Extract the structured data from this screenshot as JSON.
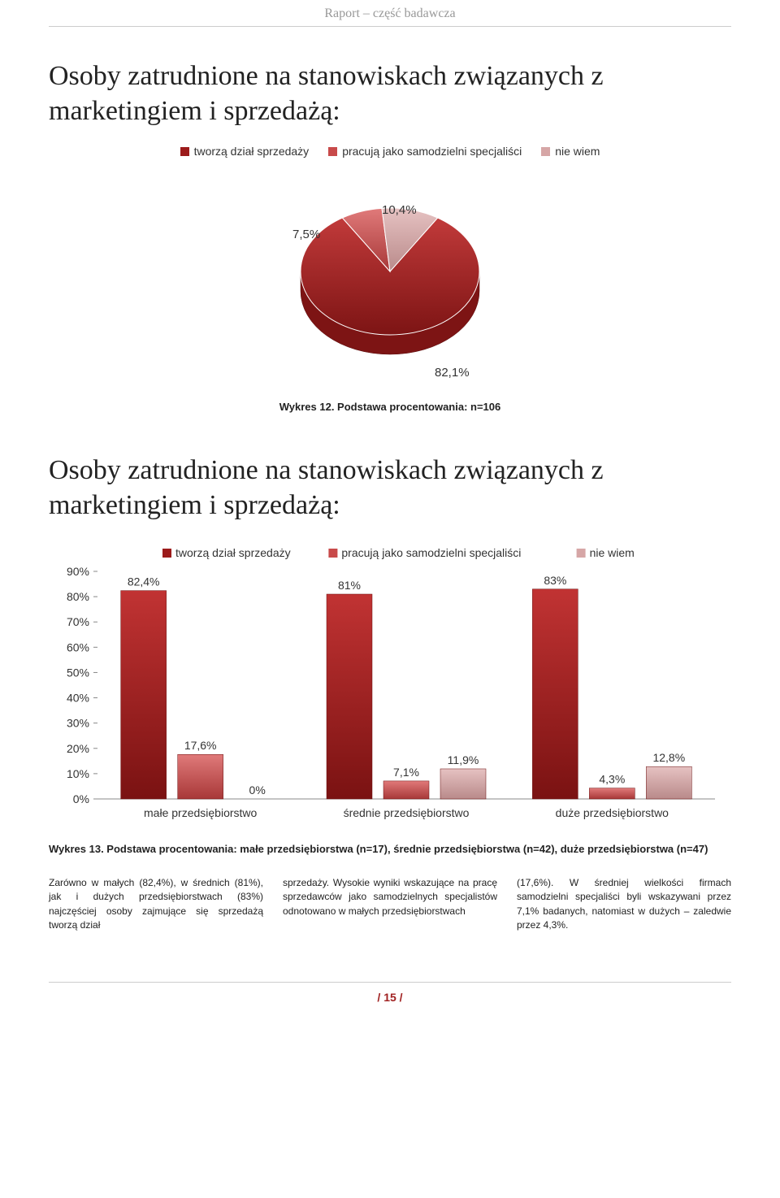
{
  "header": "Raport – część badawcza",
  "title1": "Osoby zatrudnione na stanowiskach związanych z marketingiem i sprzedażą:",
  "pie": {
    "legend": [
      {
        "label": "tworzą dział sprzedaży",
        "color": "#9c1b1b"
      },
      {
        "label": "pracują jako samodzielni specjaliści",
        "color": "#c84a4a"
      },
      {
        "label": "nie wiem",
        "color": "#d6a6a6"
      }
    ],
    "slices": [
      {
        "value": 82.1,
        "label": "82,1%",
        "color_top": "#c13a3a",
        "color_bot": "#7d1414"
      },
      {
        "value": 7.5,
        "label": "7,5%",
        "color_top": "#e07a7a",
        "color_bot": "#a83838"
      },
      {
        "value": 10.4,
        "label": "10,4%",
        "color_top": "#e6c2c2",
        "color_bot": "#b98a8a"
      }
    ],
    "caption": "Wykres 12. Podstawa procentowania: n=106"
  },
  "title2": "Osoby zatrudnione na stanowiskach związanych z marketingiem i sprzedażą:",
  "bar": {
    "legend": [
      {
        "label": "tworzą dział sprzedaży",
        "color": "#9c1b1b"
      },
      {
        "label": "pracują jako samodzielni specjaliści",
        "color": "#c84a4a"
      },
      {
        "label": "nie wiem",
        "color": "#d6a6a6"
      }
    ],
    "ymax": 90,
    "ystep": 10,
    "groups": [
      {
        "label": "małe przedsiębiorstwo",
        "bars": [
          {
            "value": 82.4,
            "label": "82,4%",
            "fill_top": "#c13333",
            "fill_bot": "#7a1212"
          },
          {
            "value": 17.6,
            "label": "17,6%",
            "fill_top": "#e07a7a",
            "fill_bot": "#a83838"
          },
          {
            "value": 0,
            "label": "0%",
            "fill_top": "#e6c2c2",
            "fill_bot": "#b98a8a"
          }
        ]
      },
      {
        "label": "średnie przedsiębiorstwo",
        "bars": [
          {
            "value": 81,
            "label": "81%",
            "fill_top": "#c13333",
            "fill_bot": "#7a1212"
          },
          {
            "value": 7.1,
            "label": "7,1%",
            "fill_top": "#e07a7a",
            "fill_bot": "#a83838"
          },
          {
            "value": 11.9,
            "label": "11,9%",
            "fill_top": "#e6c2c2",
            "fill_bot": "#b98a8a"
          }
        ]
      },
      {
        "label": "duże przedsiębiorstwo",
        "bars": [
          {
            "value": 83,
            "label": "83%",
            "fill_top": "#c13333",
            "fill_bot": "#7a1212"
          },
          {
            "value": 4.3,
            "label": "4,3%",
            "fill_top": "#e07a7a",
            "fill_bot": "#a83838"
          },
          {
            "value": 12.8,
            "label": "12,8%",
            "fill_top": "#e6c2c2",
            "fill_bot": "#b98a8a"
          }
        ]
      }
    ],
    "caption": "Wykres 13. Podstawa procentowania: małe przedsiębiorstwa (n=17), średnie przedsiębiorstwa (n=42), duże przedsiębiorstwa (n=47)"
  },
  "body": {
    "col1": "Zarówno w małych (82,4%), w średnich (81%), jak i dużych przedsiębiorstwach (83%) najczęściej osoby zajmujące się sprzedażą tworzą dział",
    "col2": "sprzedaży. Wysokie wyniki wskazujące na pracę sprzedawców jako samodzielnych specjalistów odnotowano w małych przedsiębiorstwach",
    "col3": "(17,6%). W średniej wielkości firmach samodzielni specjaliści byli wskazywani przez 7,1% badanych, natomiast w dużych – zaledwie przez 4,3%."
  },
  "page": "/ 15 /"
}
